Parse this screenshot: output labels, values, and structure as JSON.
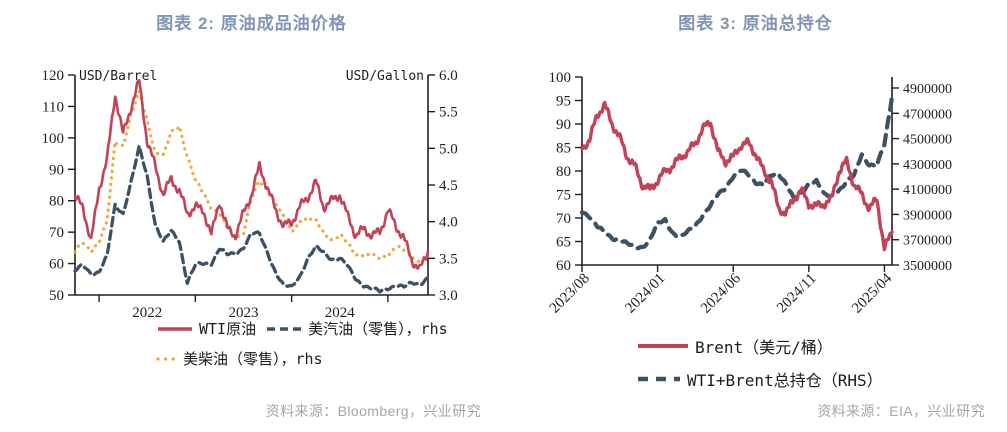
{
  "colors": {
    "accent_red": "#C24257",
    "accent_navy": "#3D5166",
    "accent_orange": "#F2A63B",
    "title_blue": "#8094B4",
    "source_gray": "#A6A6A6",
    "ink": "#1F1F1F"
  },
  "figures": [
    {
      "title": "图表 2: 原油成品油价格",
      "source": "资料来源：Bloomberg，兴业研究"
    },
    {
      "title": "图表 3: 原油总持仓",
      "source": "资料来源：EIA，兴业研究"
    }
  ],
  "chart_data": [
    {
      "type": "line",
      "title": "图表 2: 原油成品油价格",
      "left_axis": {
        "label": "USD/Barrel",
        "min": 50,
        "max": 120,
        "tick_values": [
          50,
          60,
          70,
          80,
          90,
          100,
          110,
          120
        ],
        "tick_labels": [
          "50",
          "60",
          "70",
          "80",
          "90",
          "100",
          "110",
          "120"
        ]
      },
      "right_axis": {
        "label": "USD/Gallon",
        "min": 3.0,
        "max": 6.0,
        "tick_values": [
          3,
          3.5,
          4,
          4.5,
          5,
          5.5,
          6
        ],
        "tick_labels": [
          "3.0",
          "3.5",
          "4.0",
          "4.5",
          "5.0",
          "5.5",
          "6.0"
        ]
      },
      "x_months": [
        "2021-10",
        "2021-11",
        "2021-12",
        "2022-01",
        "2022-02",
        "2022-03",
        "2022-04",
        "2022-05",
        "2022-06",
        "2022-07",
        "2022-08",
        "2022-09",
        "2022-10",
        "2022-11",
        "2022-12",
        "2023-01",
        "2023-02",
        "2023-03",
        "2023-04",
        "2023-05",
        "2023-06",
        "2023-07",
        "2023-08",
        "2023-09",
        "2023-10",
        "2023-11",
        "2023-12",
        "2024-01",
        "2024-02",
        "2024-03",
        "2024-04",
        "2024-05",
        "2024-06",
        "2024-07",
        "2024-08",
        "2024-09",
        "2024-10",
        "2024-11",
        "2024-12",
        "2025-01",
        "2025-02",
        "2025-03",
        "2025-04",
        "2025-05",
        "2025-06"
      ],
      "x_axis": {
        "boundary_tick_indices": [
          3,
          15,
          27,
          39
        ],
        "year_labels": [
          {
            "text": "2022",
            "center_index": 9
          },
          {
            "text": "2023",
            "center_index": 21
          },
          {
            "text": "2024",
            "center_index": 33
          }
        ]
      },
      "series": [
        {
          "id": "wti",
          "name": "WTI原油",
          "axis": "left",
          "unit": "USD/Barrel",
          "line": "solid",
          "color_key": "accent_red",
          "values": [
            81,
            78,
            67,
            84,
            93,
            114,
            101,
            110,
            118,
            99,
            91,
            82,
            87,
            83,
            76,
            78,
            77,
            69,
            80,
            71,
            69,
            76,
            82,
            91,
            84,
            77,
            72,
            73,
            78,
            81,
            86,
            78,
            80,
            82,
            75,
            69,
            71,
            69,
            70,
            77,
            72,
            68,
            61,
            58,
            64
          ]
        },
        {
          "id": "gasoline",
          "name": "美汽油（零售），rhs",
          "axis": "right",
          "unit": "USD/Gallon",
          "line": "dashed",
          "color_key": "accent_navy",
          "values": [
            3.32,
            3.4,
            3.3,
            3.32,
            3.52,
            4.22,
            4.12,
            4.55,
            5.0,
            4.62,
            3.98,
            3.72,
            3.86,
            3.74,
            3.18,
            3.4,
            3.42,
            3.44,
            3.64,
            3.54,
            3.56,
            3.66,
            3.84,
            3.82,
            3.58,
            3.32,
            3.12,
            3.1,
            3.26,
            3.5,
            3.64,
            3.58,
            3.5,
            3.5,
            3.38,
            3.22,
            3.14,
            3.08,
            3.04,
            3.1,
            3.14,
            3.1,
            3.16,
            3.16,
            3.24
          ]
        },
        {
          "id": "diesel",
          "name": "美柴油（零售），rhs",
          "axis": "right",
          "unit": "USD/Gallon",
          "line": "dotted",
          "color_key": "accent_orange",
          "values": [
            3.58,
            3.72,
            3.62,
            3.72,
            3.98,
            5.1,
            5.05,
            5.45,
            5.75,
            5.4,
            4.95,
            4.88,
            5.22,
            5.32,
            4.88,
            4.55,
            4.4,
            4.2,
            4.1,
            3.9,
            3.8,
            3.86,
            4.3,
            4.55,
            4.45,
            4.25,
            4.05,
            3.86,
            4.02,
            4.04,
            4.0,
            3.86,
            3.76,
            3.8,
            3.7,
            3.56,
            3.56,
            3.52,
            3.5,
            3.56,
            3.66,
            3.6,
            3.54,
            3.46,
            3.52
          ]
        }
      ],
      "legend_rows": [
        [
          "wti",
          "gasoline"
        ],
        [
          "diesel"
        ]
      ]
    },
    {
      "type": "line",
      "title": "图表 3: 原油总持仓",
      "left_axis": {
        "label": "",
        "min": 60,
        "max": 100,
        "tick_values": [
          60,
          65,
          70,
          75,
          80,
          85,
          90,
          95,
          100
        ],
        "tick_labels": [
          "60",
          "65",
          "70",
          "75",
          "80",
          "85",
          "90",
          "95",
          "100"
        ]
      },
      "right_axis": {
        "label": "",
        "min": 3500000,
        "max": 4900000,
        "tick_values": [
          3500000,
          3700000,
          3900000,
          4100000,
          4300000,
          4500000,
          4700000,
          4900000
        ],
        "tick_labels": [
          "3500000",
          "3700000",
          "3900000",
          "4100000",
          "4300000",
          "4500000",
          "4700000",
          "4900000"
        ]
      },
      "x_axis": {
        "sampling": "semi-monthly",
        "start": "2023/08",
        "end": "2025/04",
        "tick_indices": [
          0,
          10,
          20,
          30,
          40
        ],
        "tick_labels": [
          "2023/08",
          "2024/01",
          "2024/06",
          "2024/11",
          "2025/04"
        ]
      },
      "series": [
        {
          "id": "brent",
          "name": "Brent（美元/桶）",
          "axis": "left",
          "unit": "USD/Barrel",
          "line": "solid",
          "color_key": "accent_red",
          "values": [
            85,
            86.5,
            92,
            94,
            90,
            87,
            83,
            81,
            77,
            76,
            78,
            80,
            81,
            83,
            84,
            86,
            89,
            90.5,
            84,
            82,
            83,
            85.5,
            86,
            83.5,
            80,
            78,
            72,
            71,
            74,
            76,
            73,
            72.5,
            73,
            74,
            80,
            82,
            77,
            75,
            72,
            74,
            63.5,
            67
          ]
        },
        {
          "id": "positions",
          "name": "WTI+Brent总持仓（RHS）",
          "axis": "right",
          "unit": "contracts",
          "line": "dashed",
          "color_key": "accent_navy",
          "values": [
            3930000,
            3890000,
            3800000,
            3750000,
            3720000,
            3700000,
            3660000,
            3640000,
            3650000,
            3700000,
            3820000,
            3860000,
            3760000,
            3710000,
            3760000,
            3820000,
            3900000,
            3960000,
            4060000,
            4120000,
            4200000,
            4240000,
            4220000,
            4160000,
            4130000,
            4200000,
            4230000,
            4150000,
            4020000,
            4060000,
            4150000,
            4170000,
            4050000,
            4040000,
            4100000,
            4160000,
            4200000,
            4380000,
            4300000,
            4280000,
            4450000,
            4830000
          ]
        }
      ],
      "legend_rows": [
        [
          "brent"
        ],
        [
          "positions"
        ]
      ]
    }
  ]
}
